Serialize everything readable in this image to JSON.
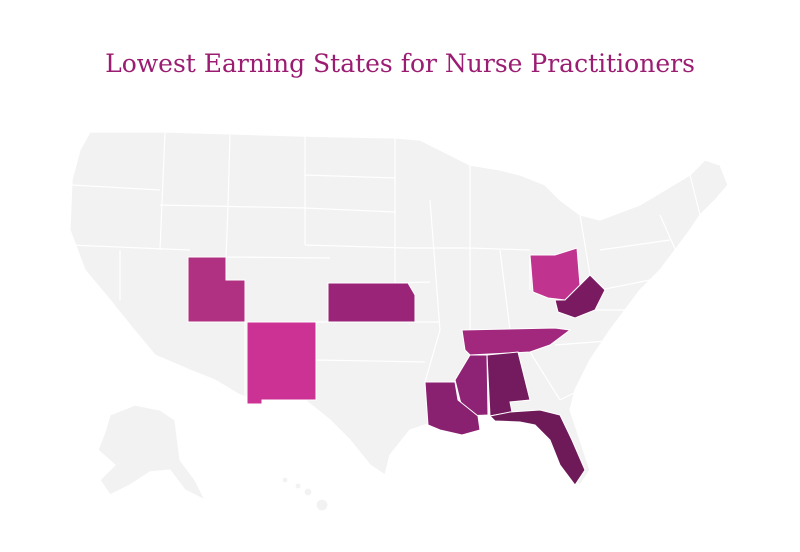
{
  "title": "Lowest Earning States for Nurse Practitioners"
}
